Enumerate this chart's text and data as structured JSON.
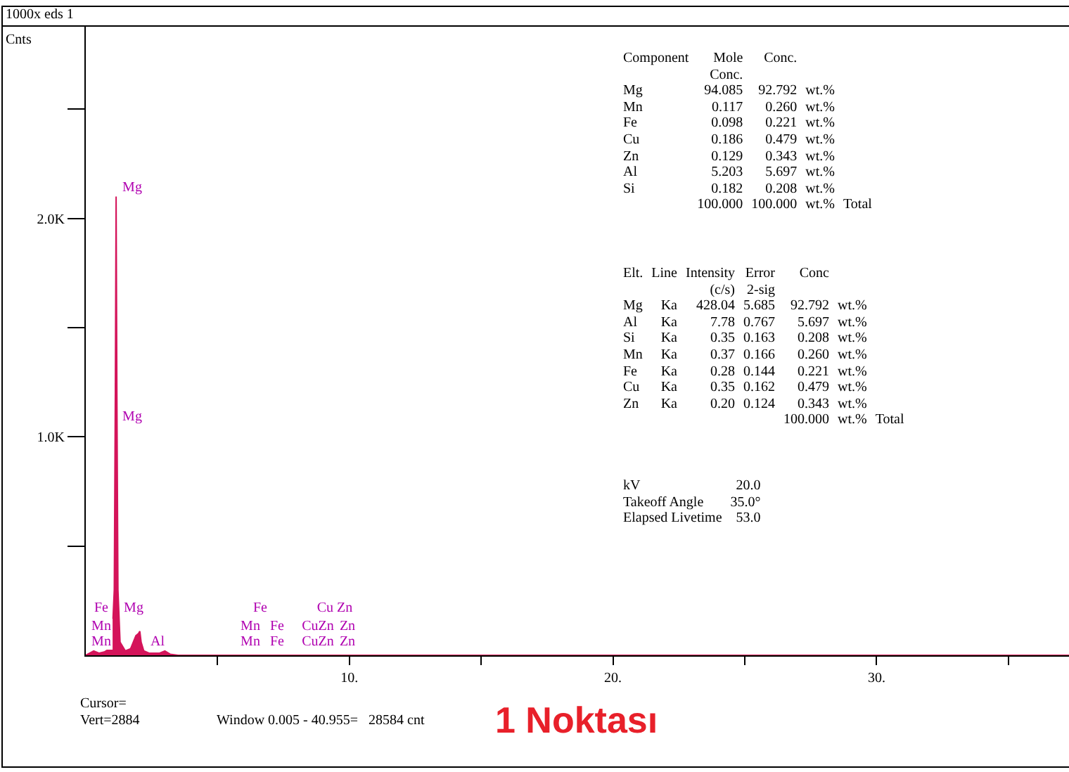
{
  "chart_data": {
    "type": "area",
    "title": "1 Noktası",
    "ylabel": "Cnts",
    "x": [
      0,
      0.3,
      0.5,
      0.7,
      0.9,
      1.0,
      1.08,
      1.12,
      1.15,
      1.18,
      1.22,
      1.3,
      1.5,
      1.7,
      1.9,
      2.0,
      2.05,
      2.1,
      2.2,
      2.4,
      2.8,
      3.0,
      3.2,
      3.5,
      6.0,
      10,
      20,
      30,
      37.3
    ],
    "values": [
      0,
      20,
      10,
      15,
      30,
      80,
      300,
      1200,
      2100,
      1200,
      300,
      60,
      20,
      30,
      90,
      100,
      110,
      60,
      20,
      10,
      10,
      20,
      5,
      0,
      0,
      0,
      0,
      0,
      0
    ],
    "color": "#d4145a",
    "xlim": [
      0,
      37.3
    ],
    "xticks": [
      {
        "value": 5,
        "label": null
      },
      {
        "value": 10,
        "label": "10."
      },
      {
        "value": 15,
        "label": null
      },
      {
        "value": 20,
        "label": "20."
      },
      {
        "value": 25,
        "label": null
      },
      {
        "value": 30,
        "label": "30."
      },
      {
        "value": 35,
        "label": null
      }
    ],
    "ylim": [
      0,
      2884
    ],
    "yticks": [
      {
        "value": 500,
        "label": null
      },
      {
        "value": 1000,
        "label": "1.0K"
      },
      {
        "value": 1500,
        "label": null
      },
      {
        "value": 2000,
        "label": "2.0K"
      },
      {
        "value": 2500,
        "label": null
      }
    ],
    "grid": false,
    "legend": false,
    "annotations": [
      "1000x eds 1",
      "Component\tMole\tConc.\t\t\n\tConc.\t\t\t\nMg\t94.085\t92.792\twt.%\t\nMn\t0.117\t0.260\twt.%\t\nFe\t0.098\t0.221\twt.%\t\nCu\t0.186\t0.479\twt.%\t\nZn\t0.129\t0.343\twt.%\t\nAl\t5.203\t5.697\twt.%\t\nSi\t0.182\t0.208\twt.%\t\n\t100.000\t100.000\twt.%\tTotal",
      "Elt.\tLine\tIntensity\tError\tConc\t\t\n\t\t(c/s)\t2-sig\t\t\t\nMg\tKa\t428.04\t5.685\t92.792\twt.%\t\nAl\tKa\t7.78\t0.767\t5.697\twt.%\t\nSi\tKa\t0.35\t0.163\t0.208\twt.%\t\nMn\tKa\t0.37\t0.166\t0.260\twt.%\t\nFe\tKa\t0.28\t0.144\t0.221\twt.%\t\nCu\tKa\t0.35\t0.162\t0.479\twt.%\t\nZn\tKa\t0.20\t0.124\t0.343\twt.%\t\n\t\t\t\t100.000\twt.%\tTotal",
      "kV\t20.0\nTakeoff Angle\t35.0°\nElapsed Livetime\t53.0",
      "Cursor=\nVert=2884",
      "Window 0.005 - 40.955=   28584 cnt",
      "Mg",
      "Mg",
      "Fe",
      "Mg",
      "Mn",
      "Mn",
      "Al",
      "Fe",
      "Cu Zn",
      "Mn",
      "Fe",
      "CuZn",
      "Zn",
      "Mn",
      "Fe",
      "CuZn",
      "Zn"
    ]
  }
}
